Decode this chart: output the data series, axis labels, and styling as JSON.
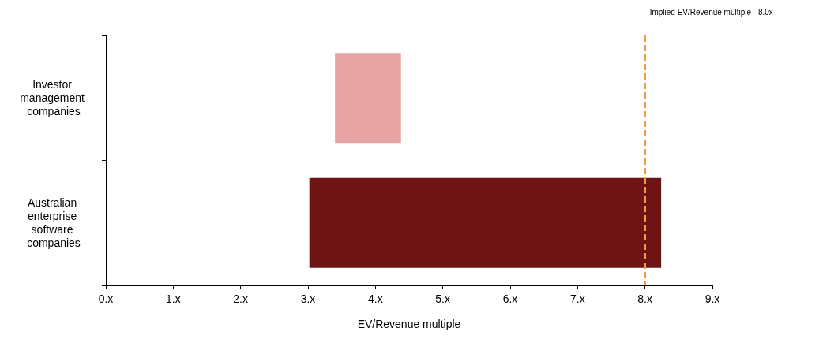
{
  "chart_data": {
    "type": "bar",
    "orientation": "horizontal",
    "xlabel": "EV/Revenue multiple",
    "categories": [
      "Investor management companies",
      "Australian enterprise software companies"
    ],
    "base": [
      3.4,
      3.02
    ],
    "values": [
      0.98,
      5.22
    ],
    "colors": [
      "#e8a3a3",
      "#6e1414"
    ],
    "xlim": [
      0,
      9
    ],
    "xticks": [
      {
        "value": 0,
        "label": "0.x"
      },
      {
        "value": 1,
        "label": "1.x"
      },
      {
        "value": 2,
        "label": "2.x"
      },
      {
        "value": 3,
        "label": "3.x"
      },
      {
        "value": 4,
        "label": "4.x"
      },
      {
        "value": 5,
        "label": "5.x"
      },
      {
        "value": 6,
        "label": "6.x"
      },
      {
        "value": 7,
        "label": "7.x"
      },
      {
        "value": 8,
        "label": "8.x"
      },
      {
        "value": 9,
        "label": "9.x"
      }
    ],
    "ref_lines": [
      {
        "axis": "x",
        "value": 8.0,
        "label": "Implied EV/Revenue multiple - 8.0x",
        "color": "#f79a3e",
        "line_style": "dashed"
      }
    ],
    "grid": false
  }
}
